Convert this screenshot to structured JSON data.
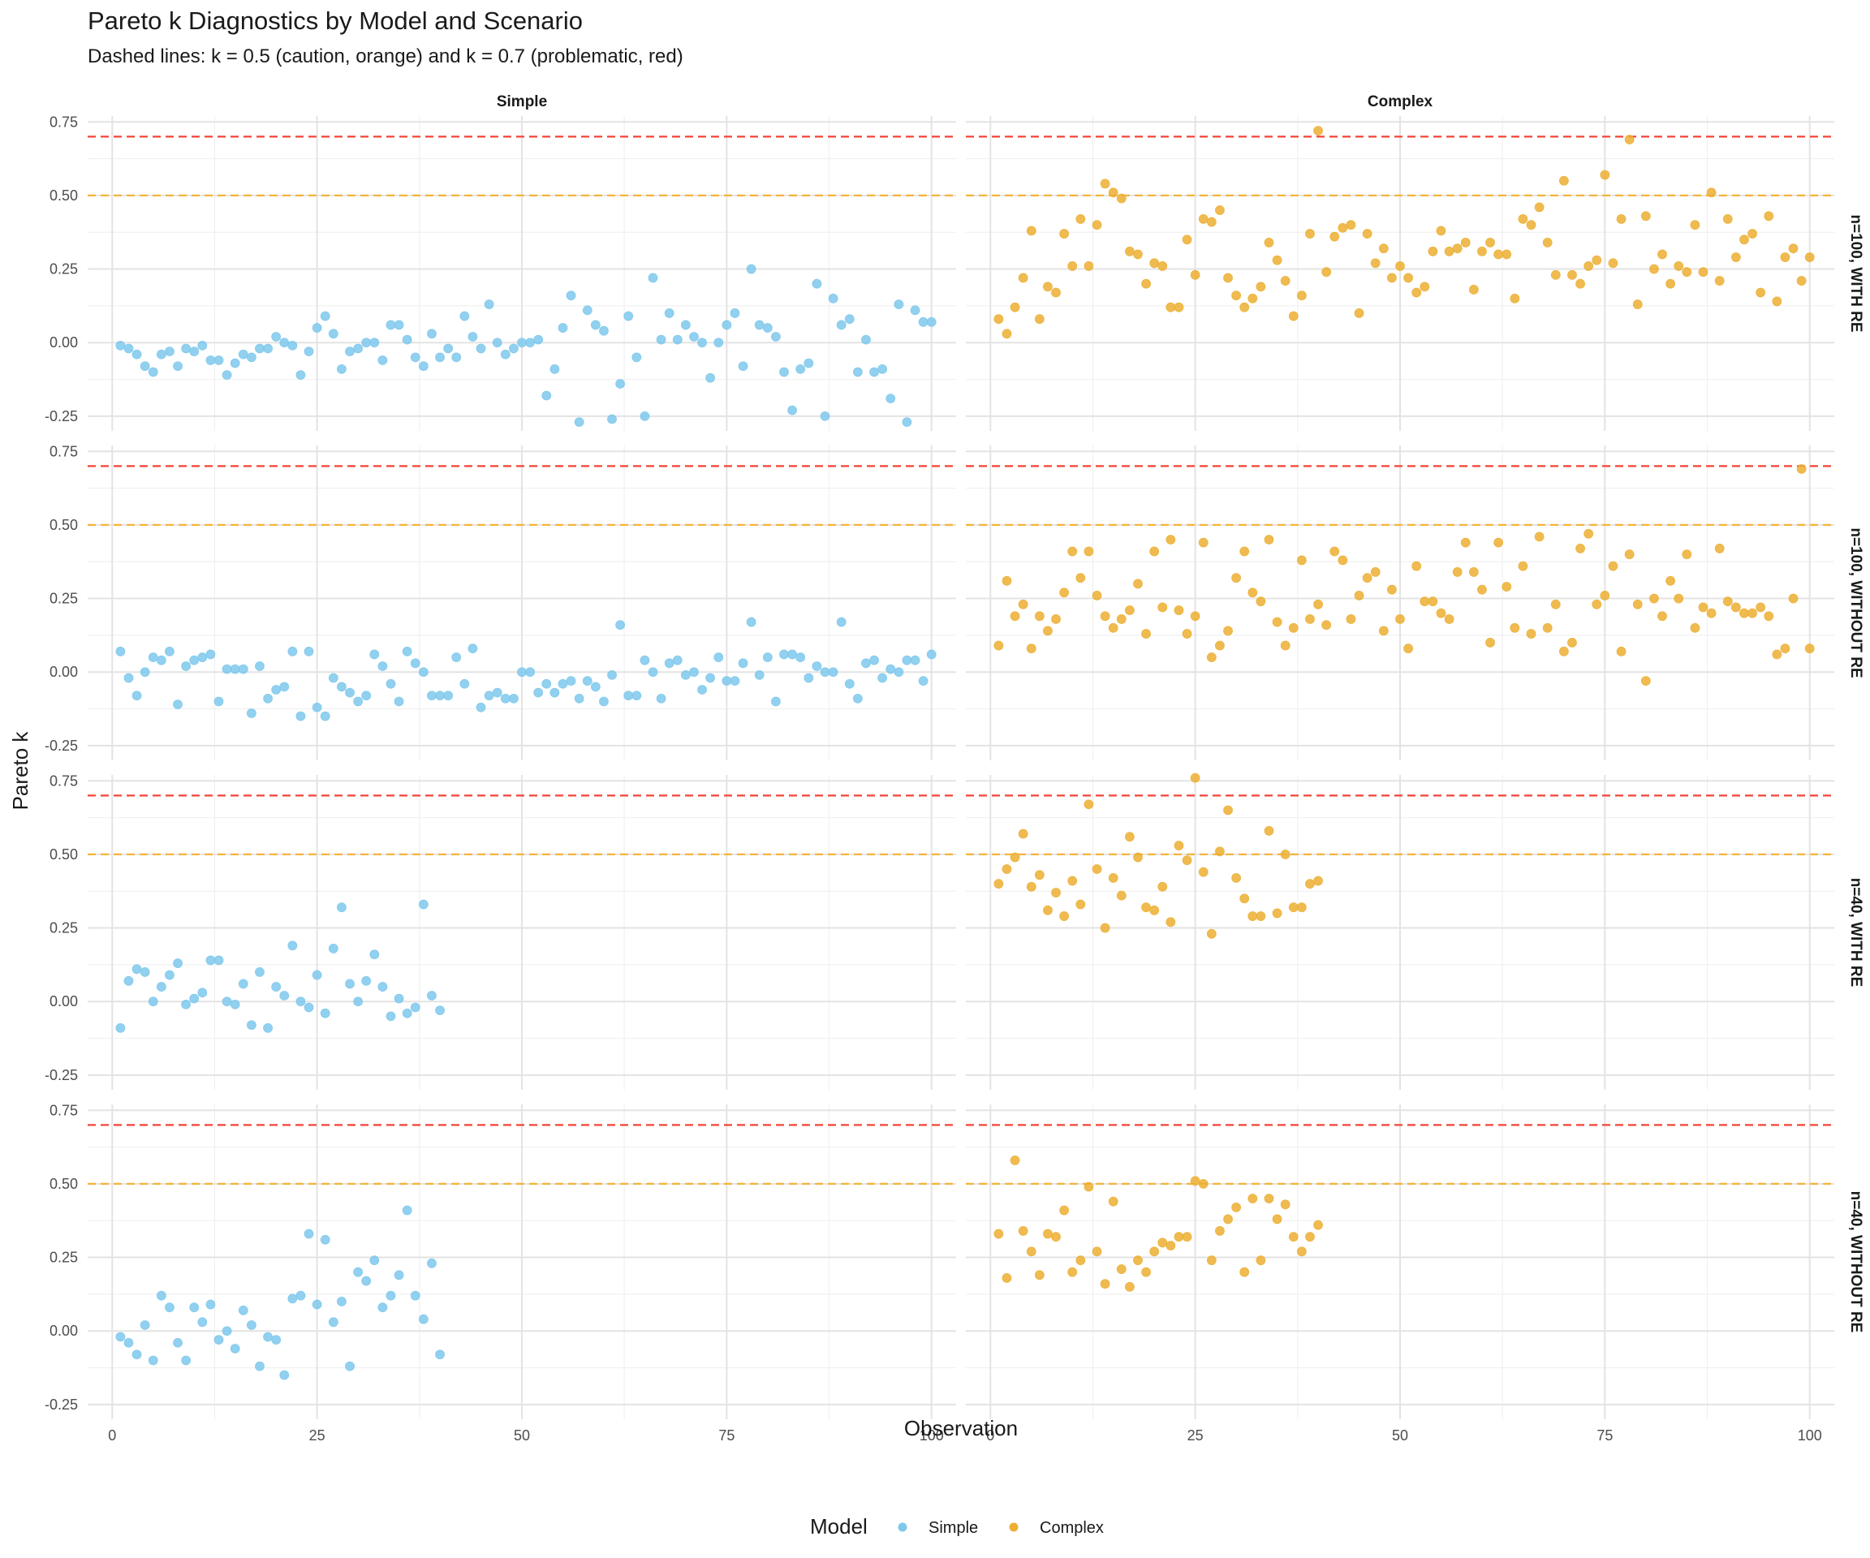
{
  "chart_data": {
    "type": "scatter",
    "title": "Pareto k Diagnostics by Model and Scenario",
    "subtitle": "Dashed lines: k = 0.5 (caution, orange) and k = 0.7 (problematic, red)",
    "xlabel": "Observation",
    "ylabel": "Pareto k",
    "xlim": [
      -3,
      103
    ],
    "ylim": [
      -0.3,
      0.77
    ],
    "x_ticks": [
      "0",
      "25",
      "50",
      "75",
      "100"
    ],
    "y_ticks": [
      "-0.25",
      "0.00",
      "0.25",
      "0.50",
      "0.75"
    ],
    "reference_lines": [
      {
        "k": 0.5,
        "color": "#F5B43A"
      },
      {
        "k": 0.7,
        "color": "#F44336"
      }
    ],
    "columns": [
      "Simple",
      "Complex"
    ],
    "rows": [
      "n=100, WITH RE",
      "n=100, WITHOUT RE",
      "n=40, WITH RE",
      "n=40, WITHOUT RE"
    ],
    "legend": {
      "title": "Model",
      "position": "bottom",
      "entries": [
        {
          "name": "Simple",
          "color": "#7EC8EC"
        },
        {
          "name": "Complex",
          "color": "#ECAF33"
        }
      ]
    },
    "panels": [
      {
        "row": 0,
        "col": 0,
        "model": "Simple",
        "y": [
          -0.01,
          -0.02,
          -0.04,
          -0.08,
          -0.1,
          -0.04,
          -0.03,
          -0.08,
          -0.02,
          -0.03,
          -0.01,
          -0.06,
          -0.06,
          -0.11,
          -0.07,
          -0.04,
          -0.05,
          -0.02,
          -0.02,
          0.02,
          0.0,
          -0.01,
          -0.11,
          -0.03,
          0.05,
          0.09,
          0.03,
          -0.09,
          -0.03,
          -0.02,
          0.0,
          0.0,
          -0.06,
          0.06,
          0.06,
          0.01,
          -0.05,
          -0.08,
          0.03,
          -0.05,
          -0.02,
          -0.05,
          0.09,
          0.02,
          -0.02,
          0.13,
          0.0,
          -0.04,
          -0.02,
          0.0,
          0.0,
          0.01,
          -0.18,
          -0.09,
          0.05,
          0.16,
          -0.27,
          0.11,
          0.06,
          0.04,
          -0.26,
          -0.14,
          0.09,
          -0.05,
          -0.25,
          0.22,
          0.01,
          0.1,
          0.01,
          0.06,
          0.02,
          0.0,
          -0.12,
          0.0,
          0.06,
          0.1,
          -0.08,
          0.25,
          0.06,
          0.05,
          0.02,
          -0.1,
          -0.23,
          -0.09,
          -0.07,
          0.2,
          -0.25,
          0.15,
          0.06,
          0.08,
          -0.1,
          0.01,
          -0.1,
          -0.09,
          -0.19,
          0.13,
          -0.27,
          0.11,
          0.07,
          0.07
        ]
      },
      {
        "row": 0,
        "col": 1,
        "model": "Complex",
        "y": [
          0.08,
          0.03,
          0.12,
          0.22,
          0.38,
          0.08,
          0.19,
          0.17,
          0.37,
          0.26,
          0.42,
          0.26,
          0.4,
          0.54,
          0.51,
          0.49,
          0.31,
          0.3,
          0.2,
          0.27,
          0.26,
          0.12,
          0.12,
          0.35,
          0.23,
          0.42,
          0.41,
          0.45,
          0.22,
          0.16,
          0.12,
          0.15,
          0.19,
          0.34,
          0.28,
          0.21,
          0.09,
          0.16,
          0.37,
          0.72,
          0.24,
          0.36,
          0.39,
          0.4,
          0.1,
          0.37,
          0.27,
          0.32,
          0.22,
          0.26,
          0.22,
          0.17,
          0.19,
          0.31,
          0.38,
          0.31,
          0.32,
          0.34,
          0.18,
          0.31,
          0.34,
          0.3,
          0.3,
          0.15,
          0.42,
          0.4,
          0.46,
          0.34,
          0.23,
          0.55,
          0.23,
          0.2,
          0.26,
          0.28,
          0.57,
          0.27,
          0.42,
          0.69,
          0.13,
          0.43,
          0.25,
          0.3,
          0.2,
          0.26,
          0.24,
          0.4,
          0.24,
          0.51,
          0.21,
          0.42,
          0.29,
          0.35,
          0.37,
          0.17,
          0.43,
          0.14,
          0.29,
          0.32,
          0.21,
          0.29
        ]
      },
      {
        "row": 1,
        "col": 0,
        "model": "Simple",
        "y": [
          0.07,
          -0.02,
          -0.08,
          0.0,
          0.05,
          0.04,
          0.07,
          -0.11,
          0.02,
          0.04,
          0.05,
          0.06,
          -0.1,
          0.01,
          0.01,
          0.01,
          -0.14,
          0.02,
          -0.09,
          -0.06,
          -0.05,
          0.07,
          -0.15,
          0.07,
          -0.12,
          -0.15,
          -0.02,
          -0.05,
          -0.07,
          -0.1,
          -0.08,
          0.06,
          0.02,
          -0.04,
          -0.1,
          0.07,
          0.03,
          0.0,
          -0.08,
          -0.08,
          -0.08,
          0.05,
          -0.04,
          0.08,
          -0.12,
          -0.08,
          -0.07,
          -0.09,
          -0.09,
          0.0,
          0.0,
          -0.07,
          -0.04,
          -0.07,
          -0.04,
          -0.03,
          -0.09,
          -0.03,
          -0.05,
          -0.1,
          -0.01,
          0.16,
          -0.08,
          -0.08,
          0.04,
          0.0,
          -0.09,
          0.03,
          0.04,
          -0.01,
          0.0,
          -0.06,
          -0.02,
          0.05,
          -0.03,
          -0.03,
          0.03,
          0.17,
          -0.01,
          0.05,
          -0.1,
          0.06,
          0.06,
          0.05,
          -0.02,
          0.02,
          0.0,
          0.0,
          0.17,
          -0.04,
          -0.09,
          0.03,
          0.04,
          -0.02,
          0.01,
          0.0,
          0.04,
          0.04,
          -0.03,
          0.06
        ]
      },
      {
        "row": 1,
        "col": 1,
        "model": "Complex",
        "y": [
          0.09,
          0.31,
          0.19,
          0.23,
          0.08,
          0.19,
          0.14,
          0.18,
          0.27,
          0.41,
          0.32,
          0.41,
          0.26,
          0.19,
          0.15,
          0.18,
          0.21,
          0.3,
          0.13,
          0.41,
          0.22,
          0.45,
          0.21,
          0.13,
          0.19,
          0.44,
          0.05,
          0.09,
          0.14,
          0.32,
          0.41,
          0.27,
          0.24,
          0.45,
          0.17,
          0.09,
          0.15,
          0.38,
          0.18,
          0.23,
          0.16,
          0.41,
          0.38,
          0.18,
          0.26,
          0.32,
          0.34,
          0.14,
          0.28,
          0.18,
          0.08,
          0.36,
          0.24,
          0.24,
          0.2,
          0.18,
          0.34,
          0.44,
          0.34,
          0.28,
          0.1,
          0.44,
          0.29,
          0.15,
          0.36,
          0.13,
          0.46,
          0.15,
          0.23,
          0.07,
          0.1,
          0.42,
          0.47,
          0.23,
          0.26,
          0.36,
          0.07,
          0.4,
          0.23,
          -0.03,
          0.25,
          0.19,
          0.31,
          0.25,
          0.4,
          0.15,
          0.22,
          0.2,
          0.42,
          0.24,
          0.22,
          0.2,
          0.2,
          0.22,
          0.19,
          0.06,
          0.08,
          0.25,
          0.69,
          0.08
        ]
      },
      {
        "row": 2,
        "col": 0,
        "model": "Simple",
        "y": [
          -0.09,
          0.07,
          0.11,
          0.1,
          0.0,
          0.05,
          0.09,
          0.13,
          -0.01,
          0.01,
          0.03,
          0.14,
          0.14,
          0.0,
          -0.01,
          0.06,
          -0.08,
          0.1,
          -0.09,
          0.05,
          0.02,
          0.19,
          0.0,
          -0.02,
          0.09,
          -0.04,
          0.18,
          0.32,
          0.06,
          0.0,
          0.07,
          0.16,
          0.05,
          -0.05,
          0.01,
          -0.04,
          -0.02,
          0.33,
          0.02,
          -0.03
        ]
      },
      {
        "row": 2,
        "col": 1,
        "model": "Complex",
        "y": [
          0.4,
          0.45,
          0.49,
          0.57,
          0.39,
          0.43,
          0.31,
          0.37,
          0.29,
          0.41,
          0.33,
          0.67,
          0.45,
          0.25,
          0.42,
          0.36,
          0.56,
          0.49,
          0.32,
          0.31,
          0.39,
          0.27,
          0.53,
          0.48,
          0.76,
          0.44,
          0.23,
          0.51,
          0.65,
          0.42,
          0.35,
          0.29,
          0.29,
          0.58,
          0.3,
          0.5,
          0.32,
          0.32,
          0.4,
          0.41
        ]
      },
      {
        "row": 3,
        "col": 0,
        "model": "Simple",
        "y": [
          -0.02,
          -0.04,
          -0.08,
          0.02,
          -0.1,
          0.12,
          0.08,
          -0.04,
          -0.1,
          0.08,
          0.03,
          0.09,
          -0.03,
          0.0,
          -0.06,
          0.07,
          0.02,
          -0.12,
          -0.02,
          -0.03,
          -0.15,
          0.11,
          0.12,
          0.33,
          0.09,
          0.31,
          0.03,
          0.1,
          -0.12,
          0.2,
          0.17,
          0.24,
          0.08,
          0.12,
          0.19,
          0.41,
          0.12,
          0.04,
          0.23,
          -0.08
        ]
      },
      {
        "row": 3,
        "col": 1,
        "model": "Complex",
        "y": [
          0.33,
          0.18,
          0.58,
          0.34,
          0.27,
          0.19,
          0.33,
          0.32,
          0.41,
          0.2,
          0.24,
          0.49,
          0.27,
          0.16,
          0.44,
          0.21,
          0.15,
          0.24,
          0.2,
          0.27,
          0.3,
          0.29,
          0.32,
          0.32,
          0.51,
          0.5,
          0.24,
          0.34,
          0.38,
          0.42,
          0.2,
          0.45,
          0.24,
          0.45,
          0.38,
          0.43,
          0.32,
          0.27,
          0.32,
          0.36
        ]
      }
    ]
  }
}
